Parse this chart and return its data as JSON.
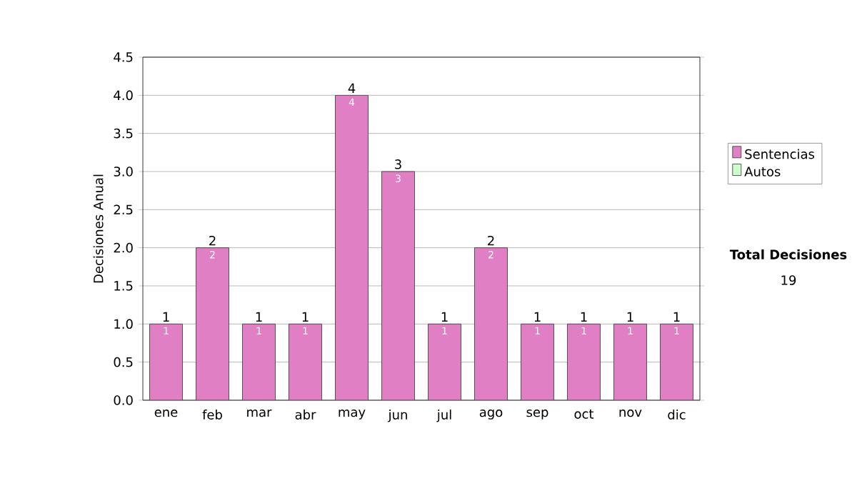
{
  "chart_data": {
    "type": "bar",
    "stacked": true,
    "ylabel": "Decisiones Anual",
    "categories": [
      "ene",
      "feb",
      "mar",
      "abr",
      "may",
      "jun",
      "jul",
      "ago",
      "sep",
      "oct",
      "nov",
      "dic"
    ],
    "series": [
      {
        "name": "Sentencias",
        "color": "#e07fc4",
        "values": [
          1,
          2,
          1,
          1,
          4,
          3,
          1,
          2,
          1,
          1,
          1,
          1
        ],
        "value_labels": [
          "1",
          "2",
          "1",
          "1",
          "4",
          "3",
          "1",
          "2",
          "1",
          "1",
          "1",
          "1"
        ]
      },
      {
        "name": "Autos",
        "color": "#ccffcc",
        "values": [
          0,
          0,
          0,
          0,
          0,
          0,
          0,
          0,
          0,
          0,
          0,
          0
        ]
      }
    ],
    "totals": [
      "1",
      "2",
      "1",
      "1",
      "4",
      "3",
      "1",
      "2",
      "1",
      "1",
      "1",
      "1"
    ],
    "ylim": [
      0,
      4.5
    ],
    "yticks": [
      {
        "value": 0,
        "label": "0.0"
      },
      {
        "value": 0.5,
        "label": "0.5"
      },
      {
        "value": 1,
        "label": "1.0"
      },
      {
        "value": 1.5,
        "label": "1.5"
      },
      {
        "value": 2,
        "label": "2.0"
      },
      {
        "value": 2.5,
        "label": "2.5"
      },
      {
        "value": 3,
        "label": "3.0"
      },
      {
        "value": 3.5,
        "label": "3.5"
      },
      {
        "value": 4,
        "label": "4.0"
      },
      {
        "value": 4.5,
        "label": "4.5"
      }
    ],
    "grid": "y",
    "legend": "right",
    "annotations": [
      "Total Decisiones",
      "19"
    ]
  }
}
